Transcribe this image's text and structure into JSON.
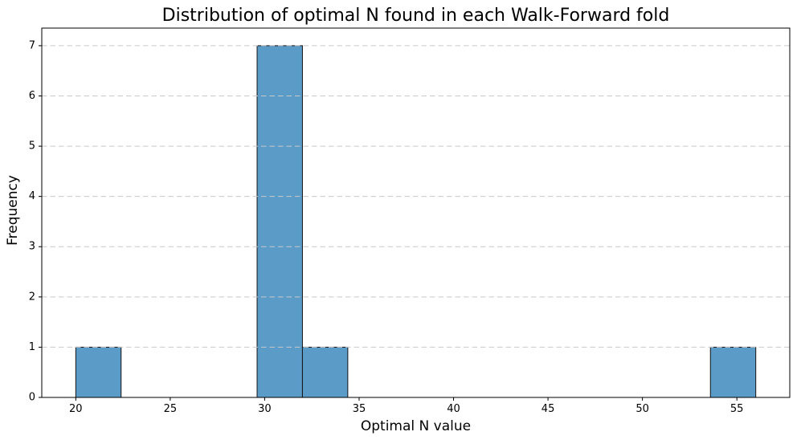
{
  "chart_data": {
    "type": "bar",
    "subtype": "histogram",
    "title": "Distribution of optimal N found in each Walk-Forward fold",
    "xlabel": "Optimal N value",
    "ylabel": "Frequency",
    "bin_edges": [
      20.0,
      22.4,
      24.8,
      27.2,
      29.6,
      32.0,
      34.4,
      36.8,
      39.2,
      41.6,
      44.0,
      46.4,
      48.8,
      51.2,
      53.6,
      56.0
    ],
    "counts": [
      1,
      0,
      0,
      0,
      7,
      1,
      0,
      0,
      0,
      0,
      0,
      0,
      0,
      0,
      1
    ],
    "xlim": [
      18.2,
      57.8
    ],
    "ylim": [
      0,
      7.35
    ],
    "x_ticks": [
      20,
      25,
      30,
      35,
      40,
      45,
      50,
      55
    ],
    "y_ticks": [
      0,
      1,
      2,
      3,
      4,
      5,
      6,
      7
    ],
    "grid": {
      "axis": "y",
      "style": "dashed",
      "color": "#c9c9c9",
      "above_bars": true
    },
    "bar_color": "#5a9bc8",
    "bar_edge_color": "#141414",
    "axis_color": "#000000",
    "legend": null
  }
}
